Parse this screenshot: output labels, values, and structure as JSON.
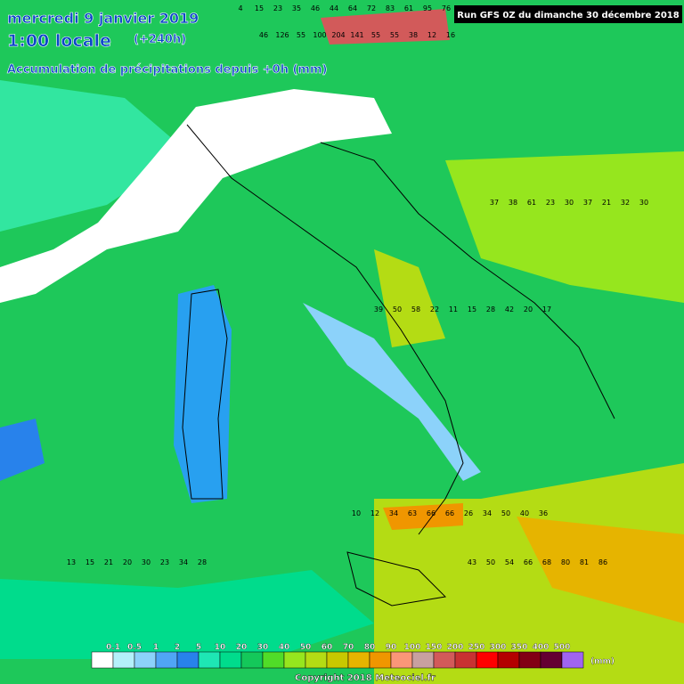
{
  "header": {
    "date": "mercredi 9 janvier 2019",
    "time": "1:00 locale",
    "lead": "(+240h)",
    "title": "Accumulation de précipitations depuis +0h (mm)",
    "run": "Run GFS 0Z du dimanche 30 décembre 2018"
  },
  "map_values": [
    [
      4,
      15,
      23,
      35,
      46,
      44,
      64,
      72,
      83,
      61,
      95,
      76
    ],
    [
      46,
      126,
      55,
      100,
      204,
      141,
      55,
      55,
      38,
      12,
      16
    ],
    [
      37,
      38,
      61,
      23,
      30,
      37,
      21,
      32,
      30
    ],
    [
      39,
      50,
      58,
      22,
      11,
      15,
      28,
      42,
      20,
      17
    ],
    [
      10,
      12,
      34,
      63,
      66,
      66,
      26,
      34,
      50,
      40,
      36
    ],
    [
      13,
      15,
      21,
      20,
      30,
      23,
      34,
      28,
      43,
      50,
      54,
      66,
      68,
      80,
      81,
      86
    ]
  ],
  "legend": {
    "labels": [
      0.1,
      0.5,
      1,
      2,
      5,
      10,
      20,
      30,
      40,
      50,
      60,
      70,
      80,
      90,
      100,
      150,
      200,
      250,
      300,
      350,
      400,
      500
    ],
    "unit": "(mm)",
    "colors": [
      "#ffffff",
      "#b4f0fa",
      "#8cd2fa",
      "#50a5f5",
      "#2882eb",
      "#1ee6b4",
      "#00dc8c",
      "#14c85a",
      "#50dc28",
      "#96e61e",
      "#b4dc14",
      "#c8c800",
      "#e6b400",
      "#f09600",
      "#fa9678",
      "#c8a0a0",
      "#d25a5a",
      "#c83232",
      "#ff0000",
      "#b40000",
      "#820014",
      "#640032",
      "#a064f0"
    ]
  },
  "copyright": "Copyright 2018 Meteociel.fr"
}
